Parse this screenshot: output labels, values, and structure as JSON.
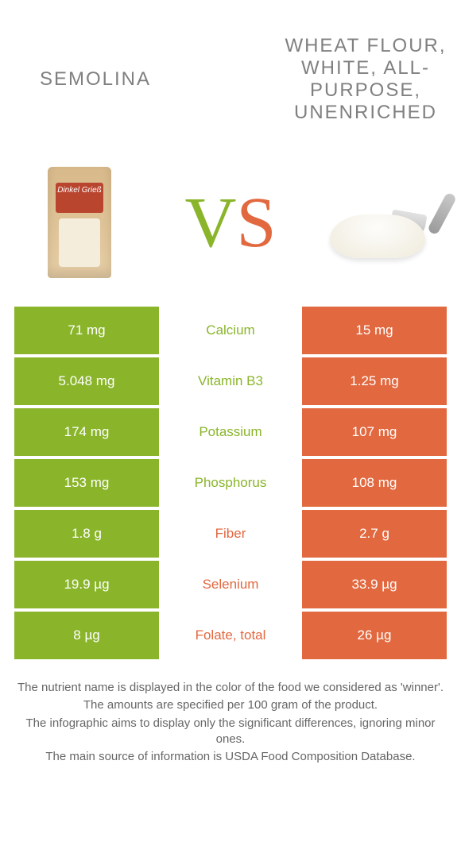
{
  "header": {
    "left_title": "Semolina",
    "right_title": "Wheat flour, white, all-purpose, unenriched",
    "vs_letters": {
      "v": "V",
      "s": "S"
    }
  },
  "images": {
    "bag_label": "Dinkel Grieß"
  },
  "colors": {
    "left": "#8ab52b",
    "right": "#e2683f",
    "text": "#808080",
    "footer_text": "#666666",
    "background": "#ffffff"
  },
  "table": {
    "rows": [
      {
        "left": "71 mg",
        "label": "Calcium",
        "right": "15 mg",
        "winner": "left"
      },
      {
        "left": "5.048 mg",
        "label": "Vitamin B3",
        "right": "1.25 mg",
        "winner": "left"
      },
      {
        "left": "174 mg",
        "label": "Potassium",
        "right": "107 mg",
        "winner": "left"
      },
      {
        "left": "153 mg",
        "label": "Phosphorus",
        "right": "108 mg",
        "winner": "left"
      },
      {
        "left": "1.8 g",
        "label": "Fiber",
        "right": "2.7 g",
        "winner": "right"
      },
      {
        "left": "19.9 µg",
        "label": "Selenium",
        "right": "33.9 µg",
        "winner": "right"
      },
      {
        "left": "8 µg",
        "label": "Folate, total",
        "right": "26 µg",
        "winner": "right"
      }
    ]
  },
  "footer": {
    "lines": [
      "The nutrient name is displayed in the color of the food we considered as 'winner'.",
      "The amounts are specified per 100 gram of the product.",
      "The infographic aims to display only the significant differences, ignoring minor ones.",
      "The main source of information is USDA Food Composition Database."
    ]
  }
}
